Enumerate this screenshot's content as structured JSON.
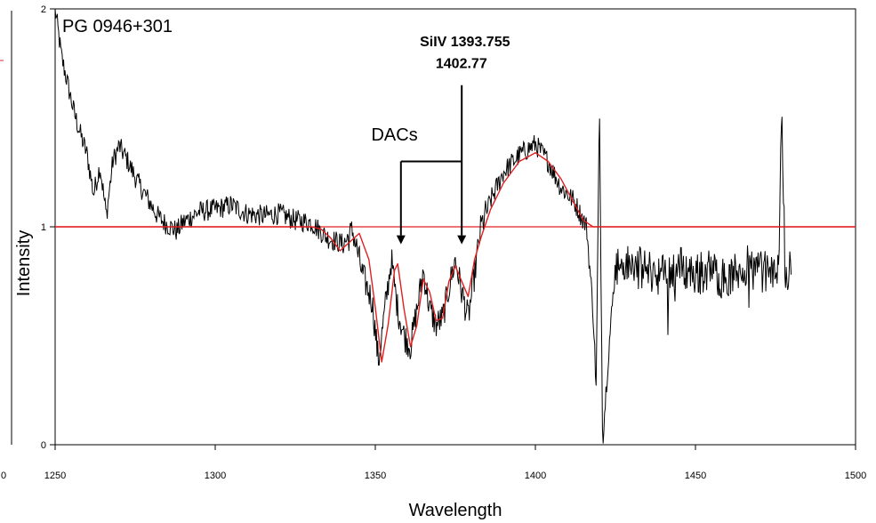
{
  "chart_data": {
    "type": "line",
    "title": "PG 0946+301",
    "xlabel": "Wavelength",
    "ylabel": "Intensity",
    "xlim": [
      1250,
      1500
    ],
    "ylim": [
      0,
      2
    ],
    "x_ticks": [
      "1250",
      "1300",
      "1350",
      "1400",
      "1450",
      "1500"
    ],
    "y_ticks": [
      "0",
      "1",
      "2"
    ],
    "left_edge_tick": "0",
    "grid": false,
    "colors": {
      "spectrum": "#000000",
      "model": "#e02020",
      "reference_line": "#e02020"
    },
    "series": [
      {
        "style": "noisy-spectrum",
        "x_range": [
          1250,
          1480
        ],
        "points": [
          [
            1250,
            2.0
          ],
          [
            1252,
            1.78
          ],
          [
            1254,
            1.65
          ],
          [
            1256,
            1.52
          ],
          [
            1258,
            1.42
          ],
          [
            1260,
            1.33
          ],
          [
            1262,
            1.15
          ],
          [
            1264,
            1.28
          ],
          [
            1266,
            1.05
          ],
          [
            1268,
            1.3
          ],
          [
            1270,
            1.37
          ],
          [
            1272,
            1.32
          ],
          [
            1274,
            1.26
          ],
          [
            1276,
            1.2
          ],
          [
            1278,
            1.15
          ],
          [
            1280,
            1.1
          ],
          [
            1282,
            1.05
          ],
          [
            1284,
            1.02
          ],
          [
            1286,
            1.0
          ],
          [
            1288,
            0.98
          ],
          [
            1290,
            1.02
          ],
          [
            1295,
            1.07
          ],
          [
            1300,
            1.08
          ],
          [
            1305,
            1.1
          ],
          [
            1310,
            1.06
          ],
          [
            1315,
            1.05
          ],
          [
            1320,
            1.06
          ],
          [
            1325,
            1.03
          ],
          [
            1330,
            1.02
          ],
          [
            1335,
            0.95
          ],
          [
            1340,
            0.92
          ],
          [
            1343,
            0.98
          ],
          [
            1346,
            0.78
          ],
          [
            1349,
            0.66
          ],
          [
            1351,
            0.38
          ],
          [
            1353,
            0.62
          ],
          [
            1355,
            0.85
          ],
          [
            1357,
            0.62
          ],
          [
            1359,
            0.5
          ],
          [
            1361,
            0.45
          ],
          [
            1363,
            0.62
          ],
          [
            1365,
            0.8
          ],
          [
            1367,
            0.62
          ],
          [
            1369,
            0.55
          ],
          [
            1371,
            0.58
          ],
          [
            1373,
            0.72
          ],
          [
            1375,
            0.85
          ],
          [
            1377,
            0.7
          ],
          [
            1379,
            0.58
          ],
          [
            1381,
            0.78
          ],
          [
            1383,
            1.0
          ],
          [
            1386,
            1.12
          ],
          [
            1390,
            1.25
          ],
          [
            1395,
            1.33
          ],
          [
            1400,
            1.38
          ],
          [
            1404,
            1.3
          ],
          [
            1408,
            1.18
          ],
          [
            1412,
            1.12
          ],
          [
            1416,
            1.0
          ],
          [
            1418,
            0.62
          ],
          [
            1419,
            0.25
          ],
          [
            1420,
            1.55
          ],
          [
            1421,
            0.02
          ],
          [
            1423,
            0.45
          ],
          [
            1425,
            0.82
          ],
          [
            1430,
            0.82
          ],
          [
            1435,
            0.8
          ],
          [
            1440,
            0.78
          ],
          [
            1445,
            0.82
          ],
          [
            1450,
            0.78
          ],
          [
            1455,
            0.8
          ],
          [
            1460,
            0.75
          ],
          [
            1465,
            0.82
          ],
          [
            1470,
            0.8
          ],
          [
            1474,
            0.78
          ],
          [
            1476,
            0.85
          ],
          [
            1477,
            1.55
          ],
          [
            1478,
            0.75
          ],
          [
            1479,
            0.8
          ],
          [
            1480,
            0.82
          ]
        ]
      },
      {
        "style": "smooth-model",
        "points": [
          [
            1250,
            1.0
          ],
          [
            1330,
            1.0
          ],
          [
            1333,
            0.99
          ],
          [
            1336,
            0.95
          ],
          [
            1339,
            0.89
          ],
          [
            1342,
            0.93
          ],
          [
            1345,
            0.97
          ],
          [
            1348,
            0.85
          ],
          [
            1350,
            0.63
          ],
          [
            1352,
            0.38
          ],
          [
            1354,
            0.55
          ],
          [
            1356,
            0.8
          ],
          [
            1357,
            0.83
          ],
          [
            1359,
            0.62
          ],
          [
            1361,
            0.45
          ],
          [
            1363,
            0.55
          ],
          [
            1365,
            0.76
          ],
          [
            1367,
            0.7
          ],
          [
            1369,
            0.57
          ],
          [
            1371,
            0.58
          ],
          [
            1373,
            0.75
          ],
          [
            1375,
            0.82
          ],
          [
            1377,
            0.75
          ],
          [
            1379,
            0.68
          ],
          [
            1381,
            0.85
          ],
          [
            1383,
            0.95
          ],
          [
            1386,
            1.08
          ],
          [
            1390,
            1.2
          ],
          [
            1395,
            1.3
          ],
          [
            1400,
            1.34
          ],
          [
            1404,
            1.3
          ],
          [
            1408,
            1.22
          ],
          [
            1412,
            1.11
          ],
          [
            1415,
            1.03
          ],
          [
            1418,
            1.0
          ],
          [
            1420,
            1.0
          ],
          [
            1500,
            1.0
          ]
        ]
      }
    ],
    "annotations": [
      {
        "text": "SiIV 1393.755",
        "anchor": [
          1378,
          1.85
        ]
      },
      {
        "text": "1402.77",
        "anchor": [
          1378,
          1.75
        ]
      },
      {
        "text": "DACs",
        "anchor": [
          1363,
          1.42
        ]
      }
    ],
    "arrows": [
      {
        "from_x": 1358,
        "from_y": 1.3,
        "to_x": 1358,
        "to_y": 0.93
      },
      {
        "from_x": 1377,
        "from_y": 1.3,
        "to_x": 1377,
        "to_y": 0.93
      },
      {
        "from_x": 1377,
        "from_y": 1.3,
        "to_x": 1377,
        "to_y": 1.65
      }
    ],
    "bracket": {
      "x1": 1358,
      "x2": 1377,
      "y": 1.3
    }
  }
}
